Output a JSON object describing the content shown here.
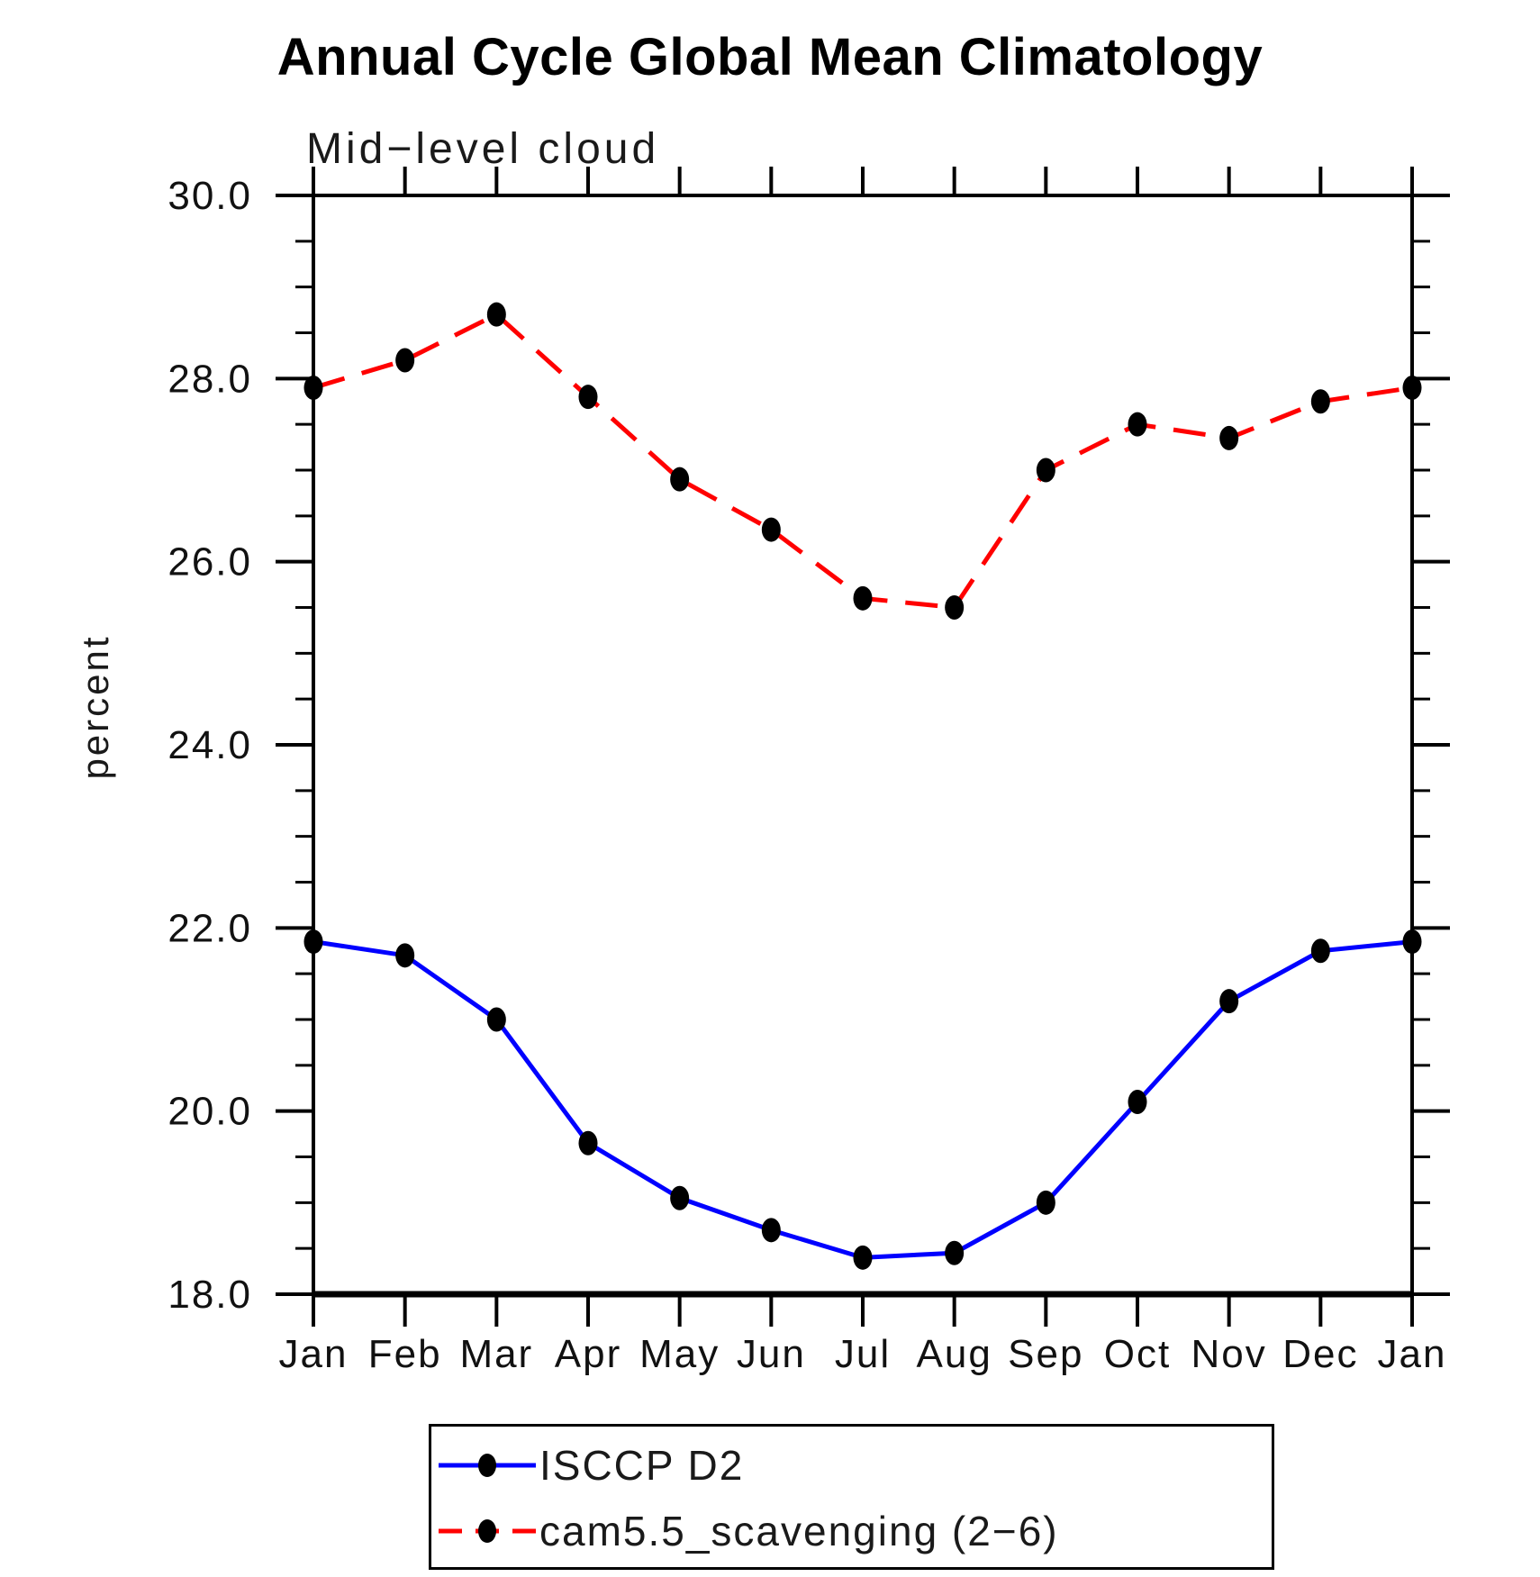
{
  "chart_data": {
    "type": "line",
    "title": "Annual Cycle Global Mean Climatology",
    "subtitle": "Mid−level cloud",
    "xlabel": "",
    "ylabel": "percent",
    "categories": [
      "Jan",
      "Feb",
      "Mar",
      "Apr",
      "May",
      "Jun",
      "Jul",
      "Aug",
      "Sep",
      "Oct",
      "Nov",
      "Dec",
      "Jan"
    ],
    "series": [
      {
        "name": "ISCCP D2",
        "color": "#0000ff",
        "style": "solid",
        "marker": "filled-dot",
        "values": [
          21.85,
          21.7,
          21.0,
          19.65,
          19.05,
          18.7,
          18.4,
          18.45,
          19.0,
          20.1,
          21.2,
          21.75,
          21.85
        ]
      },
      {
        "name": "cam5.5_scavenging (2−6)",
        "color": "#ff0000",
        "style": "dashed",
        "marker": "filled-dot",
        "values": [
          27.9,
          28.2,
          28.7,
          27.8,
          26.9,
          26.35,
          25.6,
          25.5,
          27.0,
          27.5,
          27.35,
          27.75,
          27.9
        ]
      }
    ],
    "ylim": [
      18.0,
      30.0
    ],
    "ytick_major": [
      18,
      20,
      22,
      24,
      26,
      28,
      30
    ],
    "ytick_labels": [
      "18.0",
      "20.0",
      "22.0",
      "24.0",
      "26.0",
      "28.0",
      "30.0"
    ],
    "ytick_minor_step": 0.5,
    "marker_color": "#000000",
    "grid": false,
    "legend_position": "bottom"
  }
}
